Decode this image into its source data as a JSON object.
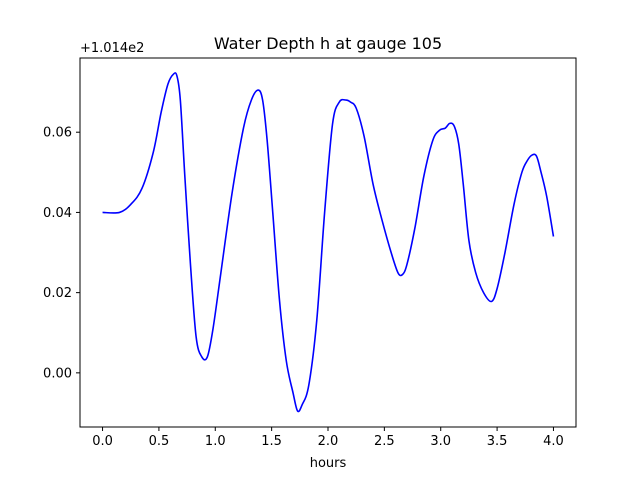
{
  "chart_data": {
    "type": "line",
    "title": "Water Depth h at gauge 105",
    "xlabel": "hours",
    "ylabel": "",
    "offset_label": "+1.014e2",
    "xlim": [
      -0.2,
      4.2
    ],
    "ylim": [
      -0.0135,
      0.0785
    ],
    "xticks": [
      "0.0",
      "0.5",
      "1.0",
      "1.5",
      "2.0",
      "2.5",
      "3.0",
      "3.5",
      "4.0"
    ],
    "yticks": [
      "0.00",
      "0.02",
      "0.04",
      "0.06"
    ],
    "grid": false,
    "line_color": "#0000ff",
    "series": [
      {
        "x": [
          0.0,
          0.15,
          0.25,
          0.35,
          0.45,
          0.52,
          0.58,
          0.63,
          0.66,
          0.69,
          0.73,
          0.78,
          0.83,
          0.88,
          0.93,
          0.98,
          1.05,
          1.15,
          1.25,
          1.32,
          1.38,
          1.42,
          1.46,
          1.51,
          1.57,
          1.63,
          1.69,
          1.73,
          1.77,
          1.83,
          1.9,
          1.97,
          2.04,
          2.1,
          2.16,
          2.2,
          2.25,
          2.32,
          2.4,
          2.48,
          2.56,
          2.62,
          2.66,
          2.7,
          2.77,
          2.85,
          2.93,
          2.99,
          3.04,
          3.08,
          3.12,
          3.16,
          3.2,
          3.25,
          3.31,
          3.38,
          3.45,
          3.5,
          3.57,
          3.65,
          3.72,
          3.77,
          3.81,
          3.85,
          3.89,
          3.94,
          4.0
        ],
        "y": [
          0.04,
          0.04,
          0.042,
          0.046,
          0.055,
          0.065,
          0.072,
          0.0745,
          0.074,
          0.068,
          0.049,
          0.027,
          0.009,
          0.004,
          0.004,
          0.011,
          0.025,
          0.045,
          0.061,
          0.068,
          0.0705,
          0.068,
          0.058,
          0.04,
          0.018,
          0.003,
          -0.005,
          -0.0095,
          -0.008,
          -0.003,
          0.013,
          0.04,
          0.062,
          0.0675,
          0.068,
          0.0675,
          0.066,
          0.059,
          0.047,
          0.038,
          0.03,
          0.025,
          0.0245,
          0.027,
          0.036,
          0.049,
          0.058,
          0.0605,
          0.061,
          0.0622,
          0.0615,
          0.057,
          0.047,
          0.033,
          0.025,
          0.02,
          0.0178,
          0.021,
          0.03,
          0.042,
          0.05,
          0.053,
          0.0543,
          0.054,
          0.05,
          0.044,
          0.034
        ]
      }
    ]
  }
}
